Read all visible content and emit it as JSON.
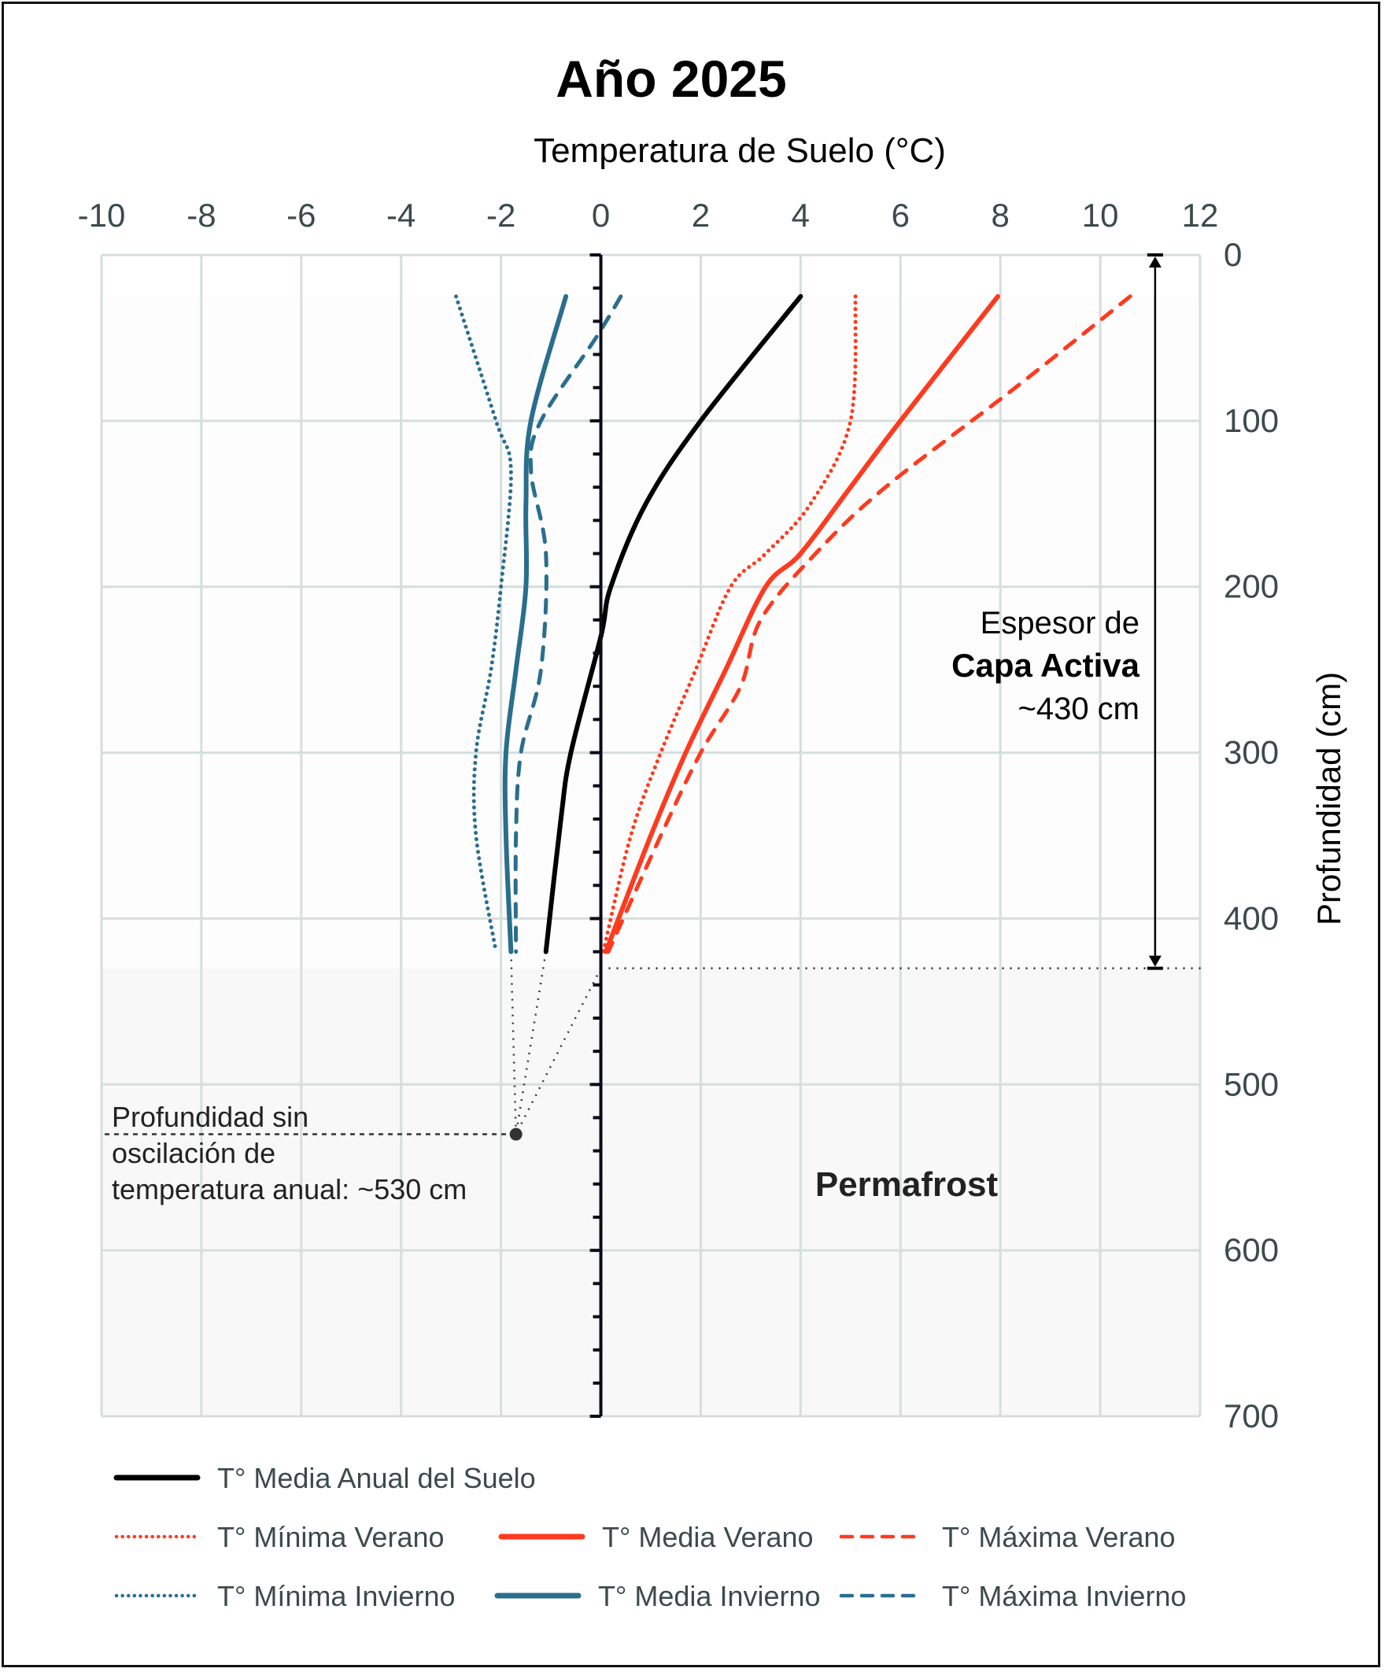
{
  "chart_data": {
    "type": "line",
    "title": "Año 2025",
    "xlabel": "Temperatura de Suelo  (°C)",
    "ylabel": "Profundidad (cm)",
    "xlim": [
      -10,
      12
    ],
    "ylim": [
      0,
      700
    ],
    "y_inverted": true,
    "x_ticks": [
      "-10",
      "-8",
      "-6",
      "-4",
      "-2",
      "0",
      "2",
      "4",
      "6",
      "8",
      "10",
      "12"
    ],
    "y_ticks": [
      "0",
      "100",
      "200",
      "300",
      "400",
      "500",
      "600",
      "700"
    ],
    "grid": true,
    "legend_position": "bottom",
    "colors": {
      "annual": "#000000",
      "summer": "#ff3a1f",
      "winter": "#2a6e8e",
      "grid": "#d5dedd",
      "tick_text": "#3c4a4c",
      "permafrost_fill": "#f8f8f8"
    },
    "series": [
      {
        "name": "T° Media Anual del Suelo",
        "color": "#000000",
        "style": "solid",
        "depth": [
          25,
          100,
          150,
          200,
          230,
          300,
          340,
          420
        ],
        "temp": [
          4.0,
          2.0,
          0.9,
          0.2,
          0.0,
          -0.6,
          -0.8,
          -1.1
        ]
      },
      {
        "name": "T° Mínima Verano",
        "color": "#ff3a1f",
        "style": "dotted",
        "depth": [
          25,
          100,
          150,
          180,
          200,
          250,
          300,
          350,
          420
        ],
        "temp": [
          5.1,
          5.0,
          4.2,
          3.3,
          2.6,
          1.9,
          1.2,
          0.6,
          0.05
        ]
      },
      {
        "name": "T° Media Verano",
        "color": "#ff3a1f",
        "style": "solid",
        "depth": [
          25,
          100,
          140,
          180,
          200,
          250,
          300,
          350,
          420
        ],
        "temp": [
          7.95,
          6.0,
          5.0,
          4.0,
          3.3,
          2.5,
          1.7,
          1.0,
          0.1
        ]
      },
      {
        "name": "T° Máxima Verano",
        "color": "#ff3a1f",
        "style": "dashed",
        "depth": [
          25,
          80,
          140,
          180,
          220,
          260,
          300,
          350,
          420
        ],
        "temp": [
          10.6,
          8.3,
          5.7,
          4.3,
          3.2,
          2.8,
          2.0,
          1.2,
          0.15
        ]
      },
      {
        "name": "T° Mínima Invierno",
        "color": "#2a6e8e",
        "style": "dotted",
        "depth": [
          25,
          100,
          130,
          200,
          250,
          300,
          350,
          420
        ],
        "temp": [
          -2.9,
          -2.1,
          -1.8,
          -2.0,
          -2.2,
          -2.5,
          -2.5,
          -2.1
        ]
      },
      {
        "name": "T° Media Invierno",
        "color": "#2a6e8e",
        "style": "solid",
        "depth": [
          25,
          100,
          150,
          200,
          250,
          300,
          350,
          420
        ],
        "temp": [
          -0.7,
          -1.4,
          -1.5,
          -1.5,
          -1.7,
          -1.9,
          -1.9,
          -1.8
        ]
      },
      {
        "name": "T° Máxima Invierno",
        "color": "#2a6e8e",
        "style": "dashed",
        "depth": [
          25,
          50,
          100,
          130,
          180,
          250,
          300,
          350,
          420
        ],
        "temp": [
          0.4,
          -0.1,
          -1.2,
          -1.4,
          -1.1,
          -1.2,
          -1.6,
          -1.7,
          -1.7
        ]
      }
    ],
    "annotations": {
      "active_layer": {
        "line1": "Espesor de",
        "line2": "Capa Activa",
        "line3": "~430 cm",
        "depth_cm": 430,
        "arrow_x_temp": 11.1
      },
      "zero_amplitude": {
        "line1": "Profundidad sin",
        "line2": "oscilación de",
        "line3": "temperatura anual: ~530 cm",
        "depth_cm": 530,
        "temp": -1.7
      },
      "permafrost": {
        "label": "Permafrost"
      }
    }
  },
  "legend": [
    {
      "label": "T° Media Anual del Suelo",
      "color": "#000000",
      "style": "solid"
    },
    {
      "label": "T° Mínima Verano",
      "color": "#ff3a1f",
      "style": "dotted"
    },
    {
      "label": "T° Media Verano",
      "color": "#ff3a1f",
      "style": "solid"
    },
    {
      "label": "T° Máxima Verano",
      "color": "#ff3a1f",
      "style": "dashed"
    },
    {
      "label": "T° Mínima Invierno",
      "color": "#2a6e8e",
      "style": "dotted"
    },
    {
      "label": "T° Media Invierno",
      "color": "#2a6e8e",
      "style": "solid"
    },
    {
      "label": "T° Máxima Invierno",
      "color": "#2a6e8e",
      "style": "dashed"
    }
  ]
}
